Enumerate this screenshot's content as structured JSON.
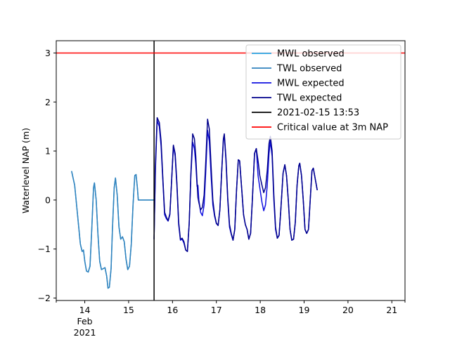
{
  "chart_data": {
    "type": "line",
    "title": "",
    "xlabel": "",
    "ylabel": "Waterlevel NAP (m)",
    "xlim": [
      13.35,
      21.3
    ],
    "ylim": [
      -2.05,
      3.25
    ],
    "x_ticks": [
      {
        "value": 14,
        "label": "14",
        "sub": [
          "Feb",
          "2021"
        ]
      },
      {
        "value": 15,
        "label": "15"
      },
      {
        "value": 16,
        "label": "16"
      },
      {
        "value": 17,
        "label": "17"
      },
      {
        "value": 18,
        "label": "18"
      },
      {
        "value": 19,
        "label": "19"
      },
      {
        "value": 20,
        "label": "20"
      },
      {
        "value": 21,
        "label": "21"
      }
    ],
    "x_minor_ticks": [
      13.35,
      21.3
    ],
    "y_ticks": [
      {
        "value": -2,
        "label": "−2"
      },
      {
        "value": -1,
        "label": "−1"
      },
      {
        "value": 0,
        "label": "0"
      },
      {
        "value": 1,
        "label": "1"
      },
      {
        "value": 2,
        "label": "2"
      },
      {
        "value": 3,
        "label": "3"
      }
    ],
    "grid": false,
    "legend_position": "top-right",
    "x_units": "day of February 2021",
    "series": [
      {
        "name": "MWL observed",
        "color": "#29a3e0",
        "width": 1.5,
        "points": [
          [
            13.7,
            0.59
          ],
          [
            13.77,
            0.3
          ],
          [
            13.84,
            -0.35
          ],
          [
            13.9,
            -0.9
          ],
          [
            13.94,
            -1.05
          ],
          [
            13.97,
            -1.02
          ],
          [
            14.0,
            -1.25
          ],
          [
            14.04,
            -1.45
          ],
          [
            14.08,
            -1.47
          ],
          [
            14.12,
            -1.35
          ],
          [
            14.16,
            -0.6
          ],
          [
            14.2,
            0.25
          ],
          [
            14.22,
            0.35
          ],
          [
            14.26,
            0.0
          ],
          [
            14.3,
            -0.7
          ],
          [
            14.34,
            -1.25
          ],
          [
            14.38,
            -1.42
          ],
          [
            14.42,
            -1.4
          ],
          [
            14.46,
            -1.38
          ],
          [
            14.5,
            -1.55
          ],
          [
            14.53,
            -1.8
          ],
          [
            14.56,
            -1.78
          ],
          [
            14.6,
            -1.4
          ],
          [
            14.63,
            -0.6
          ],
          [
            14.67,
            0.25
          ],
          [
            14.7,
            0.45
          ],
          [
            14.74,
            0.1
          ],
          [
            14.78,
            -0.55
          ],
          [
            14.82,
            -0.8
          ],
          [
            14.86,
            -0.75
          ],
          [
            14.9,
            -0.85
          ],
          [
            14.94,
            -1.2
          ],
          [
            14.98,
            -1.42
          ],
          [
            15.02,
            -1.35
          ],
          [
            15.06,
            -0.9
          ],
          [
            15.1,
            -0.1
          ],
          [
            15.14,
            0.5
          ],
          [
            15.17,
            0.52
          ],
          [
            15.2,
            0.25
          ],
          [
            15.22,
            0.0
          ],
          [
            15.58,
            0.0
          ]
        ]
      },
      {
        "name": "TWL observed",
        "color": "#3182bd",
        "width": 1.5,
        "points": [
          [
            13.7,
            0.59
          ],
          [
            13.77,
            0.3
          ],
          [
            13.84,
            -0.35
          ],
          [
            13.9,
            -0.9
          ],
          [
            13.94,
            -1.05
          ],
          [
            13.97,
            -1.02
          ],
          [
            14.0,
            -1.25
          ],
          [
            14.04,
            -1.45
          ],
          [
            14.08,
            -1.47
          ],
          [
            14.12,
            -1.35
          ],
          [
            14.16,
            -0.6
          ],
          [
            14.2,
            0.25
          ],
          [
            14.22,
            0.35
          ],
          [
            14.26,
            0.0
          ],
          [
            14.3,
            -0.7
          ],
          [
            14.34,
            -1.25
          ],
          [
            14.38,
            -1.42
          ],
          [
            14.42,
            -1.4
          ],
          [
            14.46,
            -1.38
          ],
          [
            14.5,
            -1.55
          ],
          [
            14.53,
            -1.8
          ],
          [
            14.56,
            -1.78
          ],
          [
            14.6,
            -1.4
          ],
          [
            14.63,
            -0.6
          ],
          [
            14.67,
            0.25
          ],
          [
            14.7,
            0.45
          ],
          [
            14.74,
            0.1
          ],
          [
            14.78,
            -0.55
          ],
          [
            14.82,
            -0.8
          ],
          [
            14.86,
            -0.75
          ],
          [
            14.9,
            -0.85
          ],
          [
            14.94,
            -1.2
          ],
          [
            14.98,
            -1.42
          ],
          [
            15.02,
            -1.35
          ],
          [
            15.06,
            -0.9
          ],
          [
            15.1,
            -0.1
          ],
          [
            15.14,
            0.5
          ],
          [
            15.17,
            0.52
          ],
          [
            15.2,
            0.25
          ],
          [
            15.22,
            0.0
          ],
          [
            15.58,
            0.0
          ]
        ]
      },
      {
        "name": "MWL expected",
        "color": "#1010e0",
        "width": 1.5,
        "points": [
          [
            15.58,
            -0.8
          ],
          [
            15.61,
            0.6
          ],
          [
            15.65,
            1.62
          ],
          [
            15.7,
            1.5
          ],
          [
            15.74,
            1.1
          ],
          [
            15.78,
            0.4
          ],
          [
            15.82,
            -0.3
          ],
          [
            15.86,
            -0.38
          ],
          [
            15.9,
            -0.43
          ],
          [
            15.94,
            -0.3
          ],
          [
            15.98,
            0.4
          ],
          [
            16.02,
            1.1
          ],
          [
            16.06,
            0.9
          ],
          [
            16.1,
            0.3
          ],
          [
            16.14,
            -0.5
          ],
          [
            16.18,
            -0.82
          ],
          [
            16.22,
            -0.8
          ],
          [
            16.26,
            -0.88
          ],
          [
            16.3,
            -1.02
          ],
          [
            16.34,
            -1.05
          ],
          [
            16.38,
            -0.5
          ],
          [
            16.42,
            0.5
          ],
          [
            16.46,
            1.18
          ],
          [
            16.5,
            1.05
          ],
          [
            16.53,
            0.75
          ],
          [
            16.56,
            0.28
          ],
          [
            16.58,
            0.3
          ],
          [
            16.6,
            0.0
          ],
          [
            16.64,
            -0.25
          ],
          [
            16.68,
            -0.32
          ],
          [
            16.72,
            -0.1
          ],
          [
            16.76,
            0.6
          ],
          [
            16.8,
            1.42
          ],
          [
            16.84,
            1.2
          ],
          [
            16.88,
            0.5
          ],
          [
            16.92,
            -0.1
          ],
          [
            16.96,
            -0.33
          ],
          [
            17.0,
            -0.48
          ],
          [
            17.04,
            -0.52
          ],
          [
            17.08,
            -0.2
          ],
          [
            17.12,
            0.55
          ],
          [
            17.16,
            1.22
          ],
          [
            17.18,
            1.32
          ],
          [
            17.22,
            0.8
          ],
          [
            17.26,
            0.0
          ],
          [
            17.3,
            -0.55
          ],
          [
            17.34,
            -0.7
          ],
          [
            17.38,
            -0.82
          ],
          [
            17.42,
            -0.6
          ],
          [
            17.46,
            0.2
          ],
          [
            17.5,
            0.82
          ],
          [
            17.53,
            0.8
          ],
          [
            17.58,
            0.2
          ],
          [
            17.62,
            -0.3
          ],
          [
            17.66,
            -0.5
          ],
          [
            17.7,
            -0.6
          ],
          [
            17.74,
            -0.8
          ],
          [
            17.78,
            -0.68
          ],
          [
            17.82,
            0.0
          ],
          [
            17.87,
            0.95
          ],
          [
            17.91,
            1.05
          ],
          [
            17.95,
            0.5
          ],
          [
            17.99,
            0.25
          ],
          [
            18.04,
            -0.05
          ],
          [
            18.08,
            -0.22
          ],
          [
            18.12,
            -0.1
          ],
          [
            18.16,
            0.3
          ],
          [
            18.2,
            0.95
          ],
          [
            18.23,
            1.2
          ],
          [
            18.27,
            0.9
          ],
          [
            18.31,
            0.0
          ],
          [
            18.35,
            -0.6
          ],
          [
            18.39,
            -0.78
          ],
          [
            18.43,
            -0.72
          ],
          [
            18.47,
            -0.2
          ],
          [
            18.52,
            0.55
          ],
          [
            18.56,
            0.72
          ],
          [
            18.6,
            0.5
          ],
          [
            18.64,
            0.0
          ],
          [
            18.68,
            -0.6
          ],
          [
            18.72,
            -0.82
          ],
          [
            18.76,
            -0.8
          ],
          [
            18.8,
            -0.45
          ],
          [
            18.84,
            0.3
          ],
          [
            18.88,
            0.7
          ],
          [
            18.9,
            0.75
          ],
          [
            18.94,
            0.5
          ],
          [
            18.98,
            0.0
          ],
          [
            19.02,
            -0.6
          ],
          [
            19.06,
            -0.68
          ],
          [
            19.1,
            -0.6
          ],
          [
            19.14,
            0.0
          ],
          [
            19.18,
            0.6
          ],
          [
            19.21,
            0.65
          ],
          [
            19.25,
            0.45
          ],
          [
            19.3,
            0.2
          ]
        ]
      },
      {
        "name": "TWL expected",
        "color": "#00008b",
        "width": 1.5,
        "points": [
          [
            15.58,
            -0.8
          ],
          [
            15.61,
            0.7
          ],
          [
            15.65,
            1.68
          ],
          [
            15.7,
            1.58
          ],
          [
            15.74,
            1.2
          ],
          [
            15.78,
            0.45
          ],
          [
            15.82,
            -0.25
          ],
          [
            15.86,
            -0.35
          ],
          [
            15.9,
            -0.42
          ],
          [
            15.94,
            -0.28
          ],
          [
            15.98,
            0.4
          ],
          [
            16.02,
            1.12
          ],
          [
            16.06,
            0.95
          ],
          [
            16.1,
            0.35
          ],
          [
            16.14,
            -0.45
          ],
          [
            16.18,
            -0.8
          ],
          [
            16.22,
            -0.78
          ],
          [
            16.26,
            -0.85
          ],
          [
            16.3,
            -1.02
          ],
          [
            16.34,
            -1.05
          ],
          [
            16.38,
            -0.5
          ],
          [
            16.42,
            0.55
          ],
          [
            16.46,
            1.35
          ],
          [
            16.5,
            1.25
          ],
          [
            16.53,
            0.9
          ],
          [
            16.56,
            0.35
          ],
          [
            16.58,
            0.05
          ],
          [
            16.6,
            -0.05
          ],
          [
            16.64,
            -0.2
          ],
          [
            16.68,
            -0.15
          ],
          [
            16.72,
            0.1
          ],
          [
            16.76,
            0.8
          ],
          [
            16.8,
            1.65
          ],
          [
            16.84,
            1.45
          ],
          [
            16.88,
            0.7
          ],
          [
            16.92,
            0.0
          ],
          [
            16.96,
            -0.3
          ],
          [
            17.0,
            -0.47
          ],
          [
            17.04,
            -0.52
          ],
          [
            17.08,
            -0.2
          ],
          [
            17.12,
            0.55
          ],
          [
            17.16,
            1.25
          ],
          [
            17.18,
            1.35
          ],
          [
            17.22,
            0.85
          ],
          [
            17.26,
            0.05
          ],
          [
            17.3,
            -0.5
          ],
          [
            17.34,
            -0.68
          ],
          [
            17.38,
            -0.82
          ],
          [
            17.42,
            -0.6
          ],
          [
            17.46,
            0.2
          ],
          [
            17.5,
            0.82
          ],
          [
            17.53,
            0.8
          ],
          [
            17.58,
            0.2
          ],
          [
            17.62,
            -0.3
          ],
          [
            17.66,
            -0.5
          ],
          [
            17.7,
            -0.6
          ],
          [
            17.74,
            -0.8
          ],
          [
            17.78,
            -0.68
          ],
          [
            17.82,
            0.0
          ],
          [
            17.87,
            0.95
          ],
          [
            17.91,
            1.05
          ],
          [
            17.95,
            0.8
          ],
          [
            17.99,
            0.5
          ],
          [
            18.04,
            0.3
          ],
          [
            18.08,
            0.15
          ],
          [
            18.12,
            0.25
          ],
          [
            18.16,
            0.6
          ],
          [
            18.2,
            1.15
          ],
          [
            18.23,
            1.3
          ],
          [
            18.27,
            1.0
          ],
          [
            18.31,
            0.1
          ],
          [
            18.35,
            -0.55
          ],
          [
            18.39,
            -0.78
          ],
          [
            18.43,
            -0.72
          ],
          [
            18.47,
            -0.2
          ],
          [
            18.52,
            0.55
          ],
          [
            18.56,
            0.72
          ],
          [
            18.6,
            0.5
          ],
          [
            18.64,
            0.0
          ],
          [
            18.68,
            -0.6
          ],
          [
            18.72,
            -0.82
          ],
          [
            18.76,
            -0.8
          ],
          [
            18.8,
            -0.45
          ],
          [
            18.84,
            0.3
          ],
          [
            18.88,
            0.7
          ],
          [
            18.9,
            0.75
          ],
          [
            18.94,
            0.5
          ],
          [
            18.98,
            0.0
          ],
          [
            19.02,
            -0.6
          ],
          [
            19.06,
            -0.68
          ],
          [
            19.1,
            -0.6
          ],
          [
            19.14,
            0.0
          ],
          [
            19.18,
            0.6
          ],
          [
            19.21,
            0.65
          ],
          [
            19.25,
            0.45
          ],
          [
            19.3,
            0.2
          ]
        ]
      },
      {
        "name": "2021-02-15 13:53",
        "color": "#000000",
        "width": 1.5,
        "kind": "vline",
        "x": 15.58
      },
      {
        "name": "Critical value at 3m NAP",
        "color": "#ff0000",
        "width": 1.5,
        "kind": "hline",
        "y": 3
      }
    ]
  }
}
